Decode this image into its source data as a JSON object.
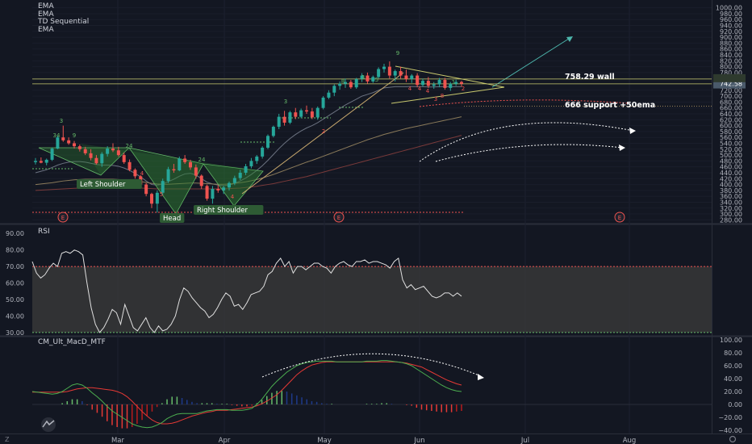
{
  "indicators": [
    "EMA",
    "EMA",
    "TD Sequential",
    "EMA"
  ],
  "price_axis": {
    "ticks": [
      "1000.00",
      "980.00",
      "960.00",
      "940.00",
      "920.00",
      "900.00",
      "880.00",
      "860.00",
      "840.00",
      "820.00",
      "800.00",
      "780.00",
      "760.00",
      "742.58",
      "720.00",
      "700.00",
      "680.00",
      "660.00",
      "640.00",
      "620.00",
      "600.00",
      "580.00",
      "560.00",
      "540.00",
      "520.00",
      "500.00",
      "480.00",
      "460.00",
      "440.00",
      "420.00",
      "400.00",
      "380.00",
      "360.00",
      "340.00",
      "320.00",
      "300.00",
      "280.00"
    ],
    "last_price": "742.58",
    "last_price_color": "#4a5a6a",
    "range": [
      270,
      1010
    ]
  },
  "rsi": {
    "title": "RSI",
    "ticks": [
      "90.00",
      "80.00",
      "70.00",
      "60.00",
      "50.00",
      "40.00",
      "30.00"
    ],
    "range": [
      28,
      95
    ],
    "upper": 70,
    "lower": 30,
    "values": [
      73,
      66,
      63,
      65,
      69,
      72,
      70,
      78,
      79,
      78,
      80,
      79,
      77,
      60,
      45,
      35,
      30,
      33,
      38,
      44,
      42,
      35,
      47,
      40,
      33,
      31,
      35,
      39,
      33,
      30,
      34,
      31,
      32,
      35,
      40,
      50,
      57,
      55,
      51,
      48,
      45,
      43,
      39,
      41,
      45,
      50,
      54,
      52,
      46,
      47,
      44,
      48,
      53,
      54,
      55,
      58,
      65,
      67,
      72,
      75,
      70,
      73,
      66,
      70,
      70,
      68,
      70,
      72,
      72,
      70,
      69,
      66,
      70,
      72,
      73,
      71,
      70,
      73,
      73,
      74,
      72,
      73,
      73,
      72,
      71,
      69,
      73,
      75,
      62,
      57,
      59,
      56,
      57,
      58,
      55,
      52,
      51,
      52,
      54,
      54,
      52,
      54,
      52
    ]
  },
  "macd": {
    "title": "CM_Ult_MacD_MTF",
    "ticks": [
      "100.00",
      "80.00",
      "60.00",
      "40.00",
      "20.00",
      "0.00",
      "−20.00",
      "−40.00"
    ],
    "range": [
      -45,
      105
    ],
    "macd_line": [
      20,
      19,
      18,
      17,
      16,
      17,
      20,
      25,
      30,
      32,
      30,
      25,
      18,
      12,
      5,
      -3,
      -10,
      -15,
      -20,
      -25,
      -30,
      -33,
      -35,
      -36,
      -35,
      -32,
      -28,
      -22,
      -18,
      -15,
      -14,
      -14,
      -14,
      -14,
      -12,
      -10,
      -9,
      -8,
      -8,
      -8,
      -9,
      -9,
      -9,
      -8,
      -6,
      0,
      8,
      18,
      28,
      36,
      43,
      50,
      55,
      60,
      63,
      65,
      66,
      67,
      67,
      67,
      67,
      66,
      66,
      66,
      66,
      66,
      66,
      67,
      67,
      67,
      68,
      68,
      67,
      66,
      65,
      63,
      60,
      55,
      50,
      45,
      40,
      35,
      30,
      26,
      23,
      21,
      20
    ],
    "signal_line": [
      19,
      19,
      19,
      19,
      19,
      19,
      19,
      20,
      22,
      24,
      25,
      26,
      26,
      25,
      24,
      23,
      22,
      20,
      17,
      12,
      5,
      -3,
      -11,
      -18,
      -24,
      -28,
      -30,
      -30,
      -29,
      -27,
      -24,
      -21,
      -18,
      -16,
      -14,
      -12,
      -11,
      -9,
      -9,
      -9,
      -8,
      -7,
      -6,
      -5,
      -4,
      -2,
      1,
      5,
      10,
      15,
      22,
      30,
      38,
      46,
      52,
      57,
      61,
      63,
      65,
      66,
      66,
      66,
      66,
      66,
      66,
      66,
      66,
      66,
      66,
      66,
      66,
      66,
      66,
      66,
      65,
      64,
      62,
      60,
      58,
      54,
      50,
      46,
      42,
      38,
      35,
      32,
      30
    ],
    "histogram": [
      0,
      0,
      0,
      0,
      0,
      0,
      2,
      5,
      8,
      8,
      5,
      -1,
      -8,
      -13,
      -19,
      -26,
      -32,
      -35,
      -37,
      -37,
      -35,
      -30,
      -24,
      -18,
      -11,
      -4,
      2,
      8,
      12,
      12,
      10,
      7,
      4,
      2,
      2,
      2,
      2,
      1,
      1,
      1,
      -1,
      -2,
      -3,
      -3,
      -2,
      2,
      7,
      13,
      18,
      21,
      21,
      20,
      17,
      14,
      11,
      8,
      5,
      4,
      2,
      1,
      1,
      0,
      0,
      0,
      0,
      0,
      0,
      1,
      1,
      1,
      2,
      2,
      1,
      0,
      0,
      -1,
      -2,
      -5,
      -8,
      -9,
      -10,
      -11,
      -12,
      -12,
      -12,
      -11,
      -10
    ]
  },
  "x_axis": {
    "labels": [
      "Mar",
      "Apr",
      "May",
      "Jun",
      "Jul",
      "Aug"
    ],
    "z_label": "Z",
    "gear_icon": "gear-icon"
  },
  "annotations": {
    "wall": "758.29 wall",
    "support": "666 support +50ema",
    "left_shoulder": "Left Shoulder",
    "head": "Head",
    "right_shoulder": "Right Shoulder",
    "earnings": "E"
  },
  "td_counts": [
    "9",
    "24",
    "34",
    "4",
    "3",
    "24",
    "3",
    "8",
    "3",
    "5",
    "2",
    "4",
    "9",
    "8",
    "4",
    "4",
    "1",
    "2",
    "3",
    "4",
    "5"
  ],
  "colors": {
    "bg": "#131722",
    "up": "#26a69a",
    "down": "#ef5350",
    "ema_gray": "#6b7280",
    "ema_tan": "#8a7a5a",
    "ema_red": "#7a3a3a",
    "pattern_fill": "#2e7d32",
    "rsi_band": "#3a3a3a",
    "macd": "#4caf50",
    "signal": "#e53935"
  },
  "chart_data": {
    "type": "candlestick",
    "y_range": [
      270,
      1010
    ],
    "ohlc": [
      [
        476,
        490,
        468,
        480
      ],
      [
        480,
        492,
        472,
        474
      ],
      [
        474,
        488,
        465,
        484
      ],
      [
        484,
        526,
        480,
        522
      ],
      [
        522,
        565,
        520,
        560
      ],
      [
        560,
        600,
        545,
        550
      ],
      [
        550,
        560,
        535,
        540
      ],
      [
        540,
        548,
        522,
        530
      ],
      [
        530,
        536,
        512,
        520
      ],
      [
        520,
        528,
        500,
        506
      ],
      [
        506,
        520,
        482,
        490
      ],
      [
        490,
        500,
        468,
        472
      ],
      [
        472,
        510,
        460,
        504
      ],
      [
        504,
        530,
        495,
        522
      ],
      [
        522,
        540,
        510,
        516
      ],
      [
        516,
        528,
        495,
        500
      ],
      [
        500,
        508,
        470,
        476
      ],
      [
        476,
        485,
        445,
        450
      ],
      [
        450,
        455,
        420,
        428
      ],
      [
        428,
        432,
        395,
        400
      ],
      [
        400,
        405,
        360,
        368
      ],
      [
        368,
        372,
        320,
        335
      ],
      [
        335,
        380,
        305,
        372
      ],
      [
        372,
        420,
        365,
        412
      ],
      [
        412,
        460,
        405,
        452
      ],
      [
        452,
        470,
        440,
        448
      ],
      [
        448,
        495,
        445,
        488
      ],
      [
        488,
        500,
        470,
        476
      ],
      [
        476,
        484,
        450,
        458
      ],
      [
        458,
        468,
        420,
        430
      ],
      [
        430,
        434,
        385,
        395
      ],
      [
        395,
        400,
        345,
        352
      ],
      [
        352,
        395,
        335,
        385
      ],
      [
        385,
        398,
        372,
        380
      ],
      [
        380,
        395,
        368,
        390
      ],
      [
        390,
        410,
        380,
        405
      ],
      [
        405,
        430,
        398,
        422
      ],
      [
        422,
        450,
        415,
        440
      ],
      [
        440,
        470,
        432,
        462
      ],
      [
        462,
        490,
        455,
        480
      ],
      [
        480,
        500,
        470,
        495
      ],
      [
        495,
        530,
        488,
        525
      ],
      [
        525,
        570,
        520,
        565
      ],
      [
        565,
        600,
        560,
        596
      ],
      [
        596,
        640,
        588,
        630
      ],
      [
        630,
        650,
        600,
        610
      ],
      [
        610,
        650,
        605,
        645
      ],
      [
        645,
        660,
        622,
        630
      ],
      [
        630,
        658,
        625,
        652
      ],
      [
        652,
        668,
        640,
        648
      ],
      [
        648,
        660,
        622,
        628
      ],
      [
        628,
        665,
        620,
        660
      ],
      [
        660,
        700,
        655,
        695
      ],
      [
        695,
        720,
        690,
        712
      ],
      [
        712,
        740,
        700,
        735
      ],
      [
        735,
        750,
        722,
        742
      ],
      [
        742,
        760,
        728,
        748
      ],
      [
        748,
        755,
        725,
        730
      ],
      [
        730,
        762,
        725,
        758
      ],
      [
        758,
        778,
        748,
        770
      ],
      [
        770,
        780,
        742,
        750
      ],
      [
        750,
        770,
        745,
        765
      ],
      [
        765,
        798,
        760,
        792
      ],
      [
        792,
        810,
        780,
        800
      ],
      [
        800,
        818,
        760,
        770
      ],
      [
        770,
        790,
        750,
        785
      ],
      [
        785,
        800,
        760,
        770
      ],
      [
        770,
        790,
        748,
        758
      ],
      [
        758,
        775,
        745,
        770
      ],
      [
        770,
        778,
        730,
        738
      ],
      [
        738,
        760,
        732,
        752
      ],
      [
        752,
        765,
        728,
        735
      ],
      [
        735,
        748,
        725,
        740
      ],
      [
        740,
        762,
        730,
        755
      ],
      [
        755,
        762,
        722,
        728
      ],
      [
        728,
        748,
        718,
        742
      ],
      [
        742,
        756,
        735,
        748
      ],
      [
        748,
        752,
        733,
        742
      ]
    ],
    "ema_series": [
      {
        "color": "#6b7280",
        "values": [
          440,
          445,
          450,
          458,
          466,
          472,
          476,
          478,
          478,
          476,
          472,
          468,
          466,
          466,
          465,
          462,
          456,
          448,
          438,
          426,
          412,
          400,
          398,
          402,
          410,
          418,
          428,
          436,
          438,
          432,
          420,
          408,
          402,
          398,
          396,
          398,
          404,
          412,
          422,
          434,
          448,
          464,
          482,
          502,
          522,
          540,
          556,
          570,
          582,
          592,
          600,
          610,
          622,
          634,
          646,
          658,
          670,
          680,
          690,
          700,
          706,
          712,
          720,
          728,
          730,
          732,
          732,
          732,
          733,
          732,
          732,
          731,
          731,
          732,
          732,
          732,
          732,
          732
        ]
      },
      {
        "color": "#8a7a5a",
        "values": [
          400,
          402,
          404,
          406,
          409,
          412,
          414,
          416,
          417,
          418,
          418,
          418,
          418,
          418,
          418,
          417,
          416,
          414,
          412,
          410,
          407,
          404,
          402,
          401,
          401,
          402,
          403,
          404,
          405,
          405,
          404,
          403,
          402,
          401,
          401,
          402,
          404,
          406,
          409,
          413,
          417,
          422,
          428,
          434,
          441,
          448,
          455,
          462,
          469,
          476,
          482,
          489,
          496,
          503,
          510,
          517,
          524,
          531,
          538,
          545,
          552,
          558,
          564,
          570,
          575,
          580,
          585,
          590,
          594,
          598,
          602,
          606,
          610,
          614,
          618,
          622,
          626,
          630
        ]
      },
      {
        "color": "#7a3a3a",
        "values": [
          380,
          381,
          382,
          383,
          384,
          385,
          386,
          387,
          388,
          389,
          389,
          389,
          389,
          389,
          389,
          389,
          389,
          389,
          389,
          388,
          387,
          386,
          385,
          385,
          385,
          385,
          385,
          385,
          385,
          385,
          385,
          385,
          385,
          385,
          385,
          386,
          387,
          388,
          390,
          392,
          394,
          397,
          400,
          403,
          407,
          411,
          415,
          419,
          423,
          427,
          432,
          437,
          442,
          447,
          452,
          457,
          462,
          467,
          472,
          477,
          482,
          487,
          492,
          497,
          502,
          507,
          512,
          517,
          522,
          527,
          532,
          537,
          542,
          547,
          552,
          557,
          562,
          567
        ]
      }
    ],
    "x_labels": [
      "Mar",
      "Apr",
      "May",
      "Jun",
      "Jul",
      "Aug"
    ],
    "levels": {
      "wall": 758.29,
      "support": 666,
      "last": 742.58
    }
  }
}
